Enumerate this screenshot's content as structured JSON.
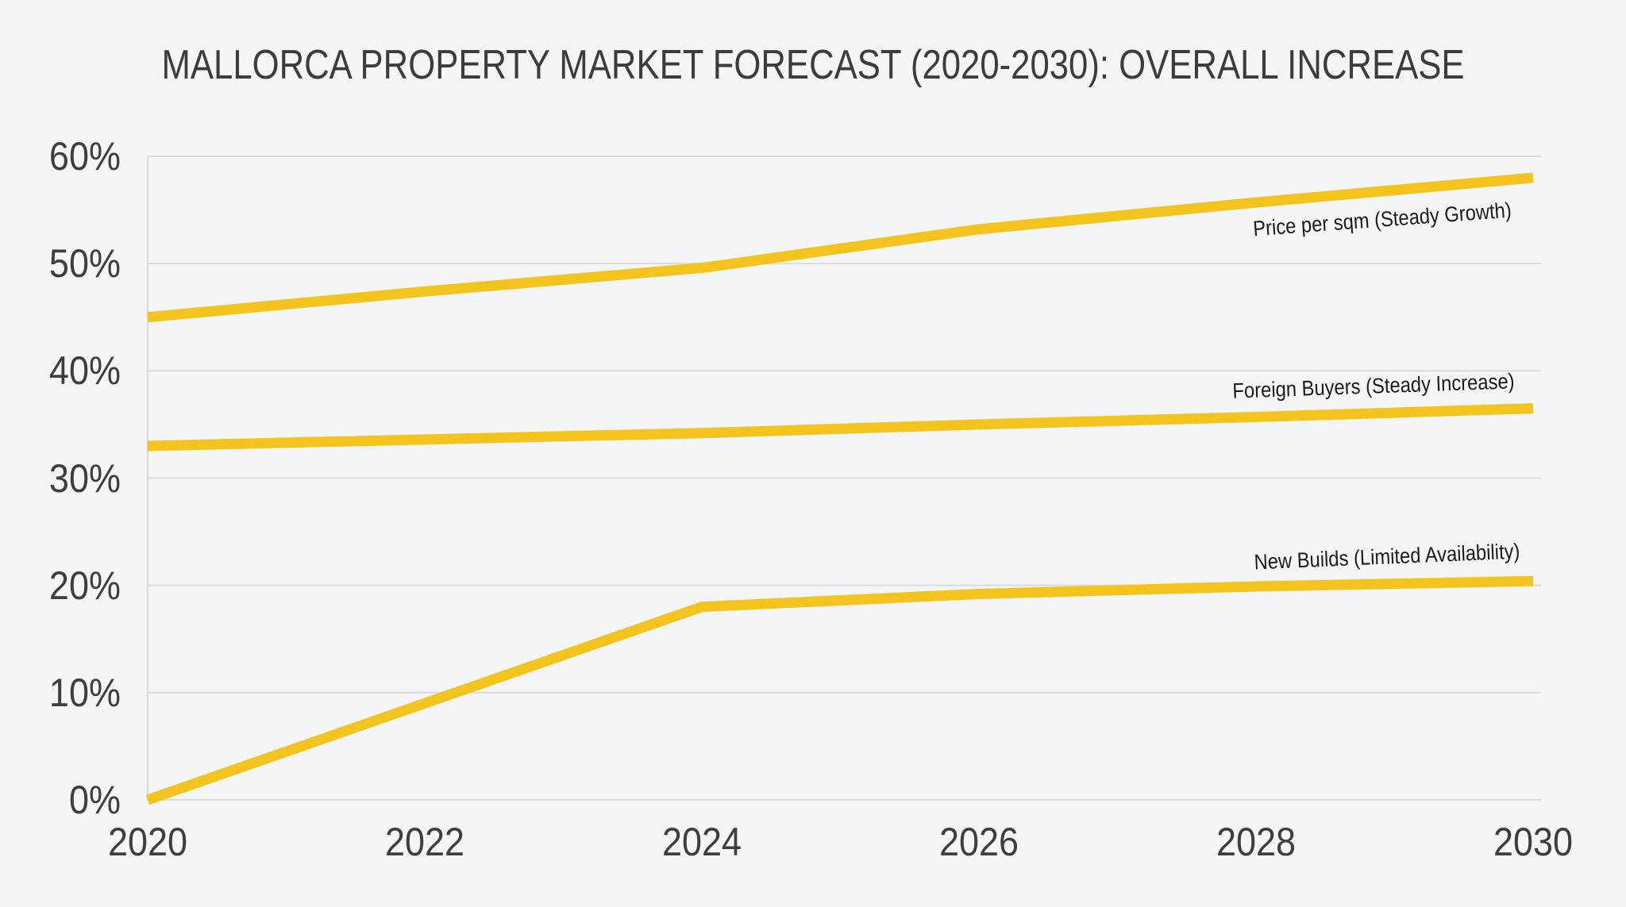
{
  "chart_data": {
    "type": "line",
    "title": "MALLORCA PROPERTY MARKET FORECAST (2020-2030): OVERALL INCREASE",
    "x": [
      2020,
      2022,
      2024,
      2026,
      2028,
      2030
    ],
    "x_tick_labels": [
      "2020",
      "2022",
      "2024",
      "2026",
      "2028",
      "2030"
    ],
    "ylim": [
      0,
      60
    ],
    "yticks": [
      {
        "value": 0,
        "label": "0%"
      },
      {
        "value": 10,
        "label": "10%"
      },
      {
        "value": 20,
        "label": "20%"
      },
      {
        "value": 30,
        "label": "30%"
      },
      {
        "value": 40,
        "label": "40%"
      },
      {
        "value": 50,
        "label": "50%"
      },
      {
        "value": 60,
        "label": "60%"
      }
    ],
    "series": [
      {
        "name": "Price per sqm (Steady Growth)",
        "values": [
          45,
          47.4,
          49.6,
          53.2,
          55.7,
          58
        ]
      },
      {
        "name": "Foreign Buyers (Steady Increase)",
        "values": [
          33,
          33.6,
          34.2,
          35,
          35.7,
          36.5
        ]
      },
      {
        "name": "New Builds (Limited Availability)",
        "values": [
          0,
          9,
          18,
          19.2,
          19.9,
          20.4
        ]
      }
    ],
    "grid": true,
    "legend_position": "inline-labels",
    "colors": {
      "line": "#F3C41E",
      "grid": "#DADADF",
      "axis_text": "#3E3E3E",
      "label_text": "#1C1C1C",
      "background": "#F4F5F7",
      "title_text": "#3C3C3C"
    }
  }
}
